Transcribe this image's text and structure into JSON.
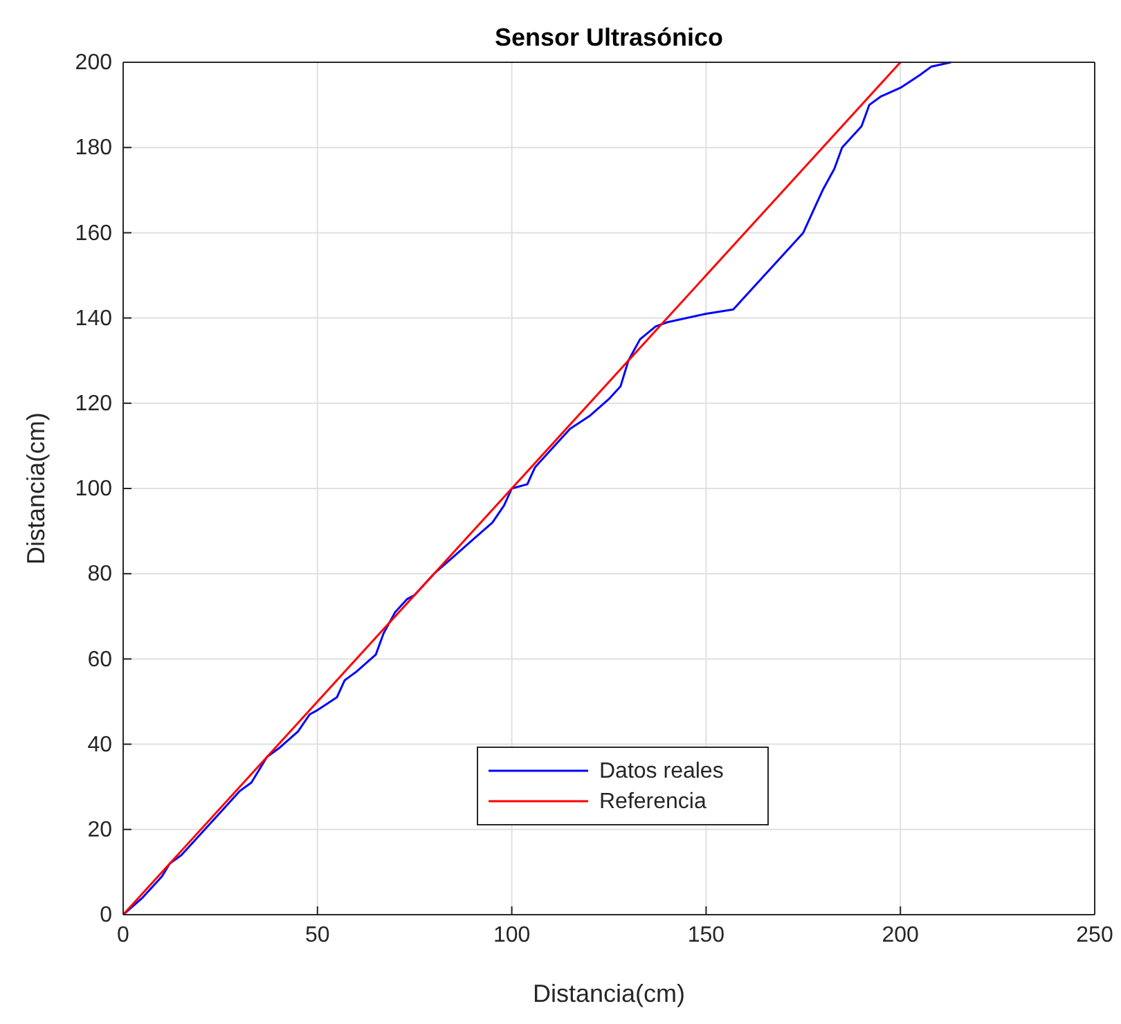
{
  "chart_data": {
    "type": "line",
    "title": "Sensor Ultrasónico",
    "xlabel": "Distancia(cm)",
    "ylabel": "Distancia(cm)",
    "xlim": [
      0,
      250
    ],
    "xticks": [
      0,
      50,
      100,
      150,
      200,
      250
    ],
    "ylim": [
      0,
      200
    ],
    "yticks": [
      0,
      20,
      40,
      60,
      80,
      100,
      120,
      140,
      160,
      180,
      200
    ],
    "grid": true,
    "legend": "bottom",
    "line_style": "solid",
    "series": [
      {
        "name": "Datos reales",
        "color": "#0000ff",
        "x": [
          0,
          5,
          10,
          12,
          15,
          20,
          25,
          30,
          33,
          35,
          37,
          40,
          45,
          48,
          50,
          55,
          57,
          60,
          65,
          67,
          70,
          73,
          75,
          80,
          85,
          90,
          95,
          98,
          100,
          104,
          106,
          110,
          115,
          120,
          125,
          128,
          130,
          133,
          137,
          140,
          150,
          157,
          160,
          165,
          170,
          175,
          178,
          180,
          183,
          185,
          190,
          192,
          195,
          200,
          205,
          208,
          213
        ],
        "values": [
          0,
          4,
          9,
          12,
          14,
          19,
          24,
          29,
          31,
          34,
          37,
          39,
          43,
          47,
          48,
          51,
          55,
          57,
          61,
          66,
          71,
          74,
          75,
          80,
          84,
          88,
          92,
          96,
          100,
          101,
          105,
          109,
          114,
          117,
          121,
          124,
          130,
          135,
          138,
          139,
          141,
          142,
          145,
          150,
          155,
          160,
          166,
          170,
          175,
          180,
          185,
          190,
          192,
          194,
          197,
          199,
          200
        ]
      },
      {
        "name": "Referencia",
        "color": "#ff0000",
        "x": [
          0,
          200
        ],
        "values": [
          0,
          200
        ]
      }
    ]
  }
}
